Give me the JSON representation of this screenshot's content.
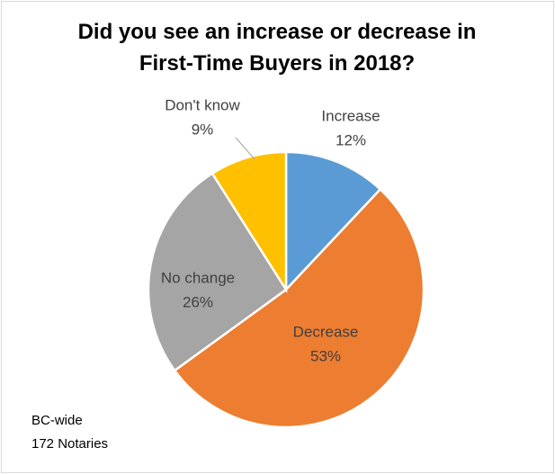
{
  "chart_data": {
    "type": "pie",
    "title": "Did you see an increase or decrease in First-Time Buyers in 2018?",
    "categories": [
      "Increase",
      "Decrease",
      "No change",
      "Don't know"
    ],
    "values": [
      12,
      53,
      26,
      9
    ],
    "value_labels": [
      "12%",
      "53%",
      "26%",
      "9%"
    ],
    "colors": [
      "#5b9bd5",
      "#ed7d31",
      "#a5a5a5",
      "#ffc000"
    ],
    "notes": [
      "BC-wide",
      "172 Notaries"
    ]
  }
}
